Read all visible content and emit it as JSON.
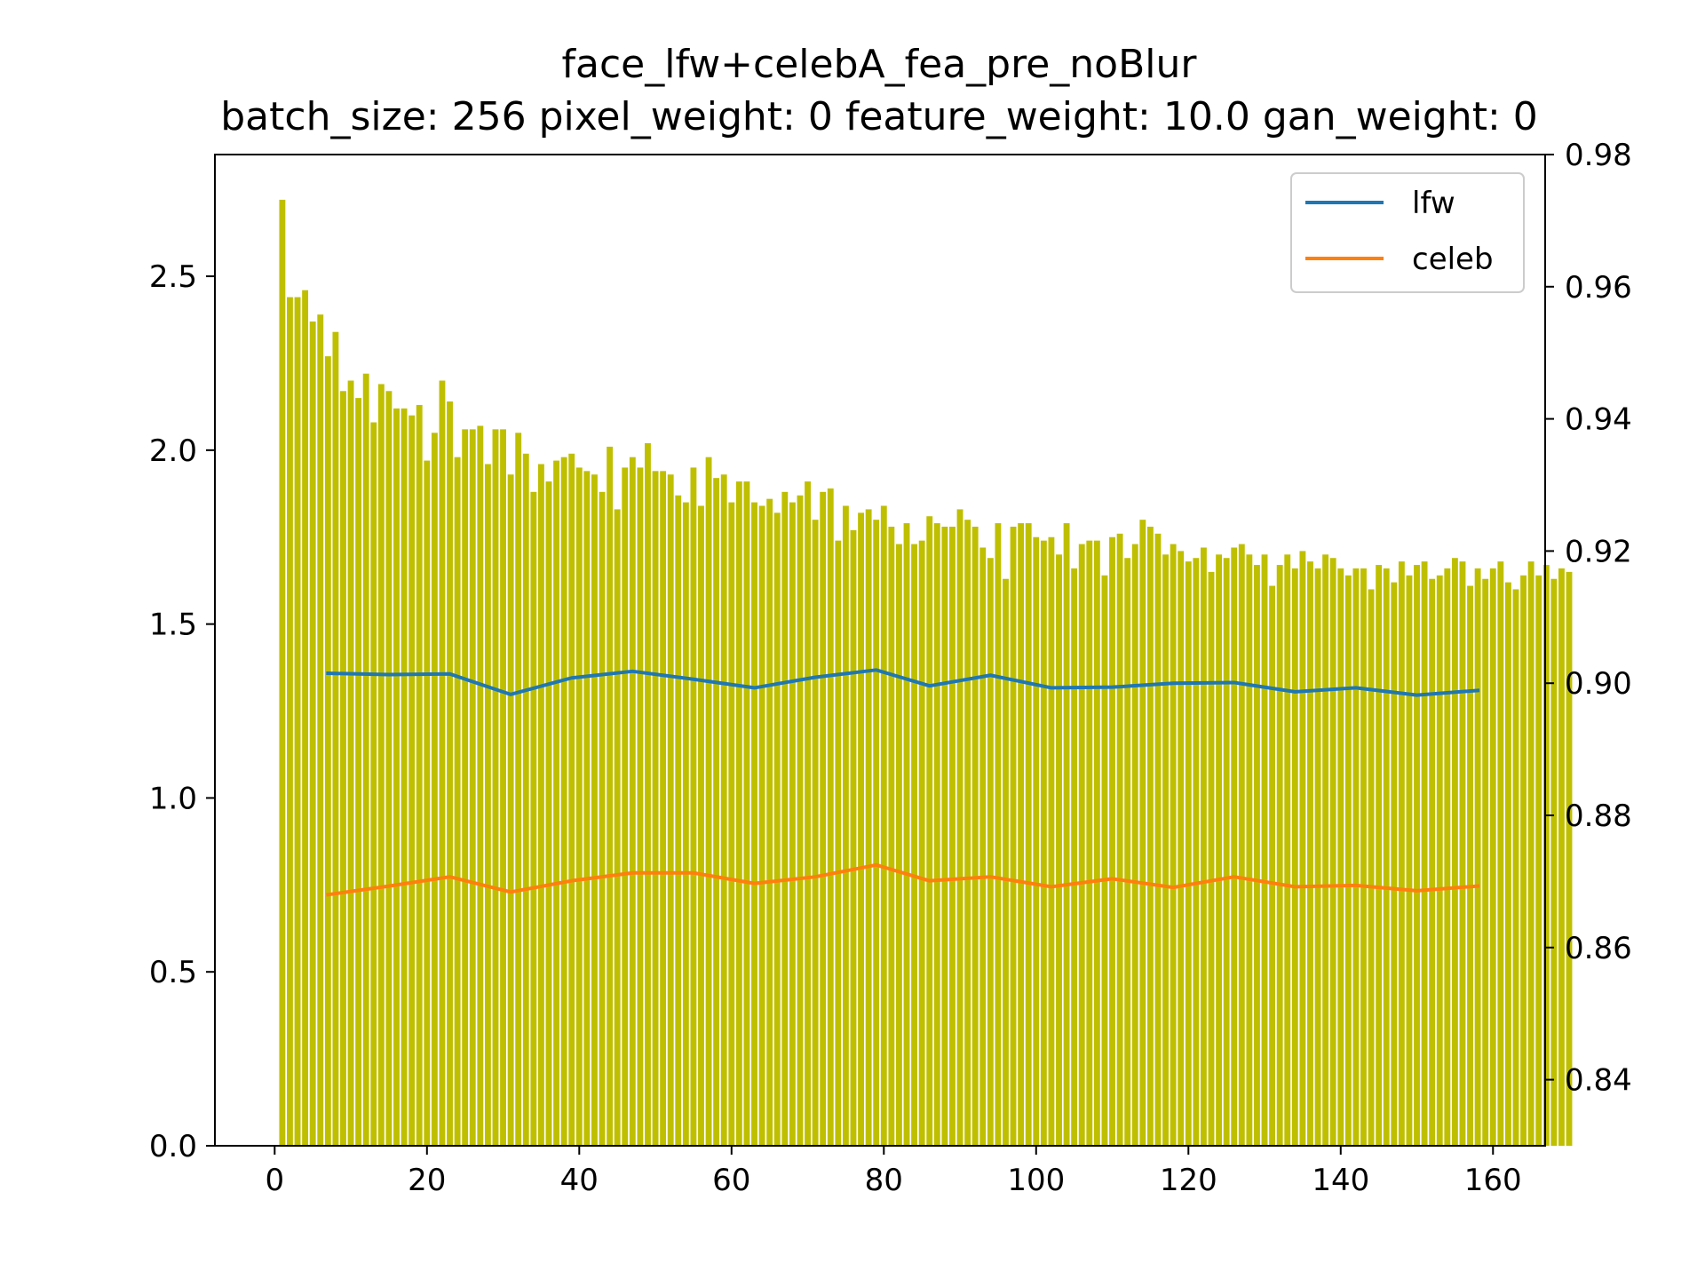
{
  "chart_data": {
    "type": "bar",
    "title": "face_lfw+celebA_fea_pre_noBlur",
    "subtitle": "batch_size: 256 pixel_weight: 0 feature_weight: 10.0 gan_weight: 0",
    "xlabel": "",
    "ylabel": "",
    "xlim": [
      -7.85,
      166.85
    ],
    "ylim": [
      0,
      2.85
    ],
    "y2lim": [
      0.83,
      0.98
    ],
    "x_ticks": [
      "0",
      "20",
      "40",
      "60",
      "80",
      "100",
      "120",
      "140",
      "160"
    ],
    "y_ticks": [
      "0.0",
      "0.5",
      "1.0",
      "1.5",
      "2.0",
      "2.5"
    ],
    "y2_ticks": [
      "0.84",
      "0.86",
      "0.88",
      "0.90",
      "0.92",
      "0.94",
      "0.96",
      "0.98"
    ],
    "grid": false,
    "legend_position": "top-right",
    "bar_color": "#bfbf00",
    "bars": {
      "x_start": 1,
      "values": [
        2.72,
        2.44,
        2.44,
        2.46,
        2.37,
        2.39,
        2.27,
        2.34,
        2.17,
        2.2,
        2.15,
        2.22,
        2.08,
        2.19,
        2.17,
        2.12,
        2.12,
        2.1,
        2.13,
        1.97,
        2.05,
        2.2,
        2.14,
        1.98,
        2.06,
        2.06,
        2.07,
        1.96,
        2.06,
        2.06,
        1.93,
        2.05,
        1.99,
        1.88,
        1.96,
        1.91,
        1.97,
        1.98,
        1.99,
        1.95,
        1.94,
        1.93,
        1.88,
        2.01,
        1.83,
        1.95,
        1.98,
        1.95,
        2.02,
        1.94,
        1.94,
        1.93,
        1.87,
        1.85,
        1.95,
        1.84,
        1.98,
        1.92,
        1.93,
        1.85,
        1.91,
        1.91,
        1.85,
        1.84,
        1.86,
        1.82,
        1.88,
        1.85,
        1.87,
        1.91,
        1.8,
        1.88,
        1.89,
        1.74,
        1.84,
        1.77,
        1.82,
        1.83,
        1.8,
        1.84,
        1.78,
        1.73,
        1.79,
        1.73,
        1.74,
        1.81,
        1.79,
        1.78,
        1.78,
        1.83,
        1.8,
        1.78,
        1.72,
        1.69,
        1.79,
        1.63,
        1.78,
        1.79,
        1.79,
        1.75,
        1.74,
        1.75,
        1.7,
        1.79,
        1.66,
        1.73,
        1.74,
        1.74,
        1.64,
        1.75,
        1.76,
        1.69,
        1.73,
        1.8,
        1.78,
        1.76,
        1.7,
        1.73,
        1.71,
        1.68,
        1.69,
        1.72,
        1.65,
        1.7,
        1.69,
        1.72,
        1.73,
        1.7,
        1.67,
        1.7,
        1.61,
        1.67,
        1.7,
        1.66,
        1.71,
        1.68,
        1.66,
        1.7,
        1.69,
        1.66,
        1.64,
        1.66,
        1.66,
        1.6,
        1.67,
        1.66,
        1.62,
        1.68,
        1.64,
        1.67,
        1.68,
        1.63,
        1.64,
        1.66,
        1.69,
        1.68,
        1.61,
        1.66,
        1.63,
        1.66,
        1.68,
        1.62,
        1.6,
        1.64,
        1.68,
        1.64,
        1.67,
        1.63,
        1.66,
        1.65
      ]
    },
    "series": [
      {
        "name": "lfw",
        "color": "#1f77b4",
        "x": [
          7,
          15,
          23,
          31,
          39,
          47,
          55,
          63,
          71,
          79,
          86,
          94,
          102,
          110,
          118,
          126,
          134,
          142,
          150,
          158
        ],
        "values": [
          0.9015,
          0.9013,
          0.9014,
          0.8983,
          0.9008,
          0.9018,
          0.9006,
          0.8993,
          0.9009,
          0.902,
          0.8996,
          0.9012,
          0.8993,
          0.8994,
          0.9,
          0.9001,
          0.8987,
          0.8993,
          0.8982,
          0.8989
        ]
      },
      {
        "name": "celeb",
        "color": "#ff7f0e",
        "x": [
          7,
          15,
          23,
          31,
          39,
          47,
          55,
          63,
          71,
          79,
          86,
          94,
          102,
          110,
          118,
          126,
          134,
          142,
          150,
          158
        ],
        "values": [
          0.868,
          0.8693,
          0.8707,
          0.8684,
          0.8701,
          0.8713,
          0.8713,
          0.8697,
          0.8707,
          0.8725,
          0.8701,
          0.8707,
          0.8692,
          0.8704,
          0.8691,
          0.8707,
          0.8692,
          0.8694,
          0.8686,
          0.8693
        ]
      }
    ]
  }
}
